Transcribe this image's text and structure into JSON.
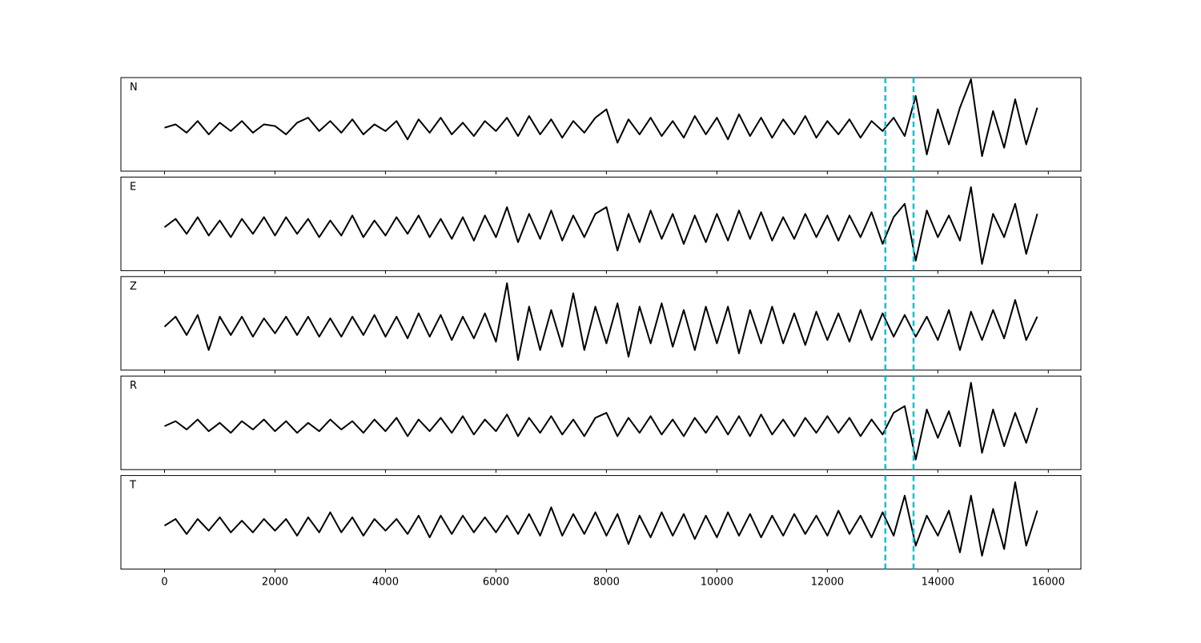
{
  "chart_data": {
    "type": "line",
    "xlim": [
      -790,
      16590
    ],
    "xticks": [
      0,
      2000,
      4000,
      6000,
      8000,
      10000,
      12000,
      14000,
      16000
    ],
    "ylim": [
      -1.3,
      1.5
    ],
    "vlines": [
      13050,
      13560
    ],
    "vline_color": "#17becf",
    "x": [
      0,
      200,
      400,
      600,
      800,
      1000,
      1200,
      1400,
      1600,
      1800,
      2000,
      2200,
      2400,
      2600,
      2800,
      3000,
      3200,
      3400,
      3600,
      3800,
      4000,
      4200,
      4400,
      4600,
      4800,
      5000,
      5200,
      5400,
      5600,
      5800,
      6000,
      6200,
      6400,
      6600,
      6800,
      7000,
      7200,
      7400,
      7600,
      7800,
      8000,
      8200,
      8400,
      8600,
      8800,
      9000,
      9200,
      9400,
      9600,
      9800,
      10000,
      10200,
      10400,
      10600,
      10800,
      11000,
      11200,
      11400,
      11600,
      11800,
      12000,
      12200,
      12400,
      12600,
      12800,
      13000,
      13200,
      13400,
      13600,
      13800,
      14000,
      14200,
      14400,
      14600,
      14800,
      15000,
      15200,
      15400,
      15600,
      15800
    ],
    "series": [
      {
        "name": "N",
        "color": "#000000",
        "values": [
          0,
          0.1,
          -0.15,
          0.2,
          -0.2,
          0.15,
          -0.1,
          0.2,
          -0.15,
          0.1,
          0.05,
          -0.2,
          0.15,
          0.3,
          -0.1,
          0.2,
          -0.15,
          0.25,
          -0.2,
          0.1,
          -0.1,
          0.2,
          -0.35,
          0.25,
          -0.15,
          0.3,
          -0.2,
          0.15,
          -0.25,
          0.2,
          -0.1,
          0.3,
          -0.25,
          0.35,
          -0.2,
          0.25,
          -0.3,
          0.2,
          -0.15,
          0.3,
          0.55,
          -0.45,
          0.25,
          -0.2,
          0.3,
          -0.25,
          0.2,
          -0.3,
          0.35,
          -0.2,
          0.3,
          -0.35,
          0.4,
          -0.25,
          0.3,
          -0.3,
          0.25,
          -0.2,
          0.35,
          -0.3,
          0.2,
          -0.2,
          0.25,
          -0.3,
          0.2,
          -0.1,
          0.3,
          -0.25,
          0.95,
          -0.8,
          0.55,
          -0.5,
          0.6,
          1.45,
          -0.85,
          0.5,
          -0.6,
          0.85,
          -0.5,
          0.6
        ]
      },
      {
        "name": "E",
        "color": "#000000",
        "values": [
          0,
          0.25,
          -0.2,
          0.3,
          -0.25,
          0.2,
          -0.3,
          0.25,
          -0.2,
          0.3,
          -0.25,
          0.3,
          -0.2,
          0.25,
          -0.3,
          0.2,
          -0.25,
          0.35,
          -0.3,
          0.2,
          -0.25,
          0.3,
          -0.2,
          0.35,
          -0.3,
          0.25,
          -0.35,
          0.3,
          -0.4,
          0.35,
          -0.3,
          0.6,
          -0.45,
          0.4,
          -0.35,
          0.5,
          -0.4,
          0.35,
          -0.3,
          0.4,
          0.6,
          -0.7,
          0.4,
          -0.45,
          0.5,
          -0.35,
          0.4,
          -0.5,
          0.35,
          -0.45,
          0.4,
          -0.4,
          0.5,
          -0.35,
          0.45,
          -0.4,
          0.3,
          -0.35,
          0.4,
          -0.3,
          0.35,
          -0.4,
          0.35,
          -0.3,
          0.45,
          -0.5,
          0.3,
          0.7,
          -1.0,
          0.5,
          -0.3,
          0.35,
          -0.4,
          1.2,
          -1.1,
          0.4,
          -0.3,
          0.7,
          -0.8,
          0.4
        ]
      },
      {
        "name": "Z",
        "color": "#000000",
        "values": [
          0,
          0.3,
          -0.25,
          0.35,
          -0.7,
          0.3,
          -0.25,
          0.3,
          -0.3,
          0.25,
          -0.2,
          0.3,
          -0.25,
          0.3,
          -0.3,
          0.25,
          -0.3,
          0.3,
          -0.25,
          0.35,
          -0.3,
          0.3,
          -0.35,
          0.4,
          -0.3,
          0.35,
          -0.4,
          0.3,
          -0.35,
          0.4,
          -0.45,
          1.3,
          -1.0,
          0.6,
          -0.7,
          0.5,
          -0.6,
          1.0,
          -0.7,
          0.6,
          -0.5,
          0.7,
          -0.9,
          0.6,
          -0.5,
          0.7,
          -0.6,
          0.5,
          -0.7,
          0.6,
          -0.5,
          0.6,
          -0.8,
          0.5,
          -0.5,
          0.6,
          -0.5,
          0.4,
          -0.55,
          0.45,
          -0.4,
          0.4,
          -0.45,
          0.5,
          -0.4,
          0.4,
          -0.3,
          0.35,
          -0.3,
          0.3,
          -0.4,
          0.5,
          -0.7,
          0.45,
          -0.4,
          0.5,
          -0.35,
          0.8,
          -0.4,
          0.3
        ]
      },
      {
        "name": "R",
        "color": "#000000",
        "values": [
          0,
          0.15,
          -0.1,
          0.2,
          -0.15,
          0.1,
          -0.2,
          0.15,
          -0.1,
          0.2,
          -0.15,
          0.15,
          -0.2,
          0.1,
          -0.15,
          0.2,
          -0.1,
          0.15,
          -0.2,
          0.2,
          -0.15,
          0.25,
          -0.3,
          0.2,
          -0.15,
          0.25,
          -0.2,
          0.3,
          -0.25,
          0.2,
          -0.15,
          0.35,
          -0.3,
          0.25,
          -0.2,
          0.3,
          -0.25,
          0.2,
          -0.3,
          0.25,
          0.4,
          -0.3,
          0.25,
          -0.2,
          0.3,
          -0.25,
          0.2,
          -0.3,
          0.25,
          -0.2,
          0.3,
          -0.25,
          0.3,
          -0.3,
          0.35,
          -0.25,
          0.2,
          -0.3,
          0.25,
          -0.2,
          0.3,
          -0.2,
          0.25,
          -0.3,
          0.2,
          -0.25,
          0.4,
          0.6,
          -1.0,
          0.5,
          -0.35,
          0.45,
          -0.6,
          1.3,
          -0.8,
          0.5,
          -0.6,
          0.4,
          -0.5,
          0.55
        ]
      },
      {
        "name": "T",
        "color": "#000000",
        "values": [
          0,
          0.2,
          -0.25,
          0.2,
          -0.15,
          0.25,
          -0.2,
          0.15,
          -0.2,
          0.2,
          -0.15,
          0.2,
          -0.3,
          0.25,
          -0.2,
          0.4,
          -0.2,
          0.25,
          -0.3,
          0.2,
          -0.15,
          0.2,
          -0.25,
          0.3,
          -0.35,
          0.3,
          -0.25,
          0.3,
          -0.2,
          0.25,
          -0.2,
          0.3,
          -0.25,
          0.35,
          -0.3,
          0.55,
          -0.3,
          0.35,
          -0.25,
          0.4,
          -0.3,
          0.35,
          -0.55,
          0.3,
          -0.35,
          0.4,
          -0.3,
          0.35,
          -0.4,
          0.3,
          -0.35,
          0.4,
          -0.3,
          0.35,
          -0.35,
          0.3,
          -0.3,
          0.35,
          -0.25,
          0.3,
          -0.3,
          0.45,
          -0.25,
          0.3,
          -0.35,
          0.4,
          -0.3,
          0.9,
          -0.6,
          0.3,
          -0.3,
          0.45,
          -0.8,
          0.9,
          -0.9,
          0.5,
          -0.7,
          1.3,
          -0.6,
          0.45
        ]
      }
    ]
  }
}
